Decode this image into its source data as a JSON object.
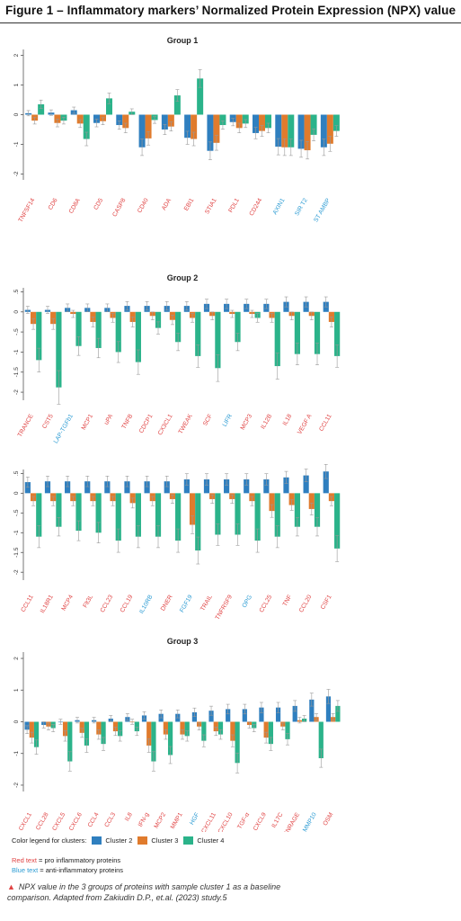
{
  "title": "Figure 1 – Inflammatory markers’ Normalized Protein Expression (NPX) value",
  "colors": {
    "c2": "#2f7fbf",
    "c3": "#e07b2d",
    "c4": "#2bb38a",
    "pro": "#e04343",
    "anti": "#2b9bd3"
  },
  "legend": {
    "heading": "Color legend for clusters:",
    "items": [
      "Cluster 2",
      "Cluster 3",
      "Cluster 4"
    ],
    "red_word": "Red text",
    "red_rest": "= pro inflammatory proteins",
    "blue_word": "Blue text",
    "blue_rest": "= anti-inflammatory proteins"
  },
  "caption": "NPX value in the 3 groups of proteins with sample cluster 1 as a baseline comparison. Adapted from Zakiudin D.P., et.al. (2023) study.5",
  "chart_data": [
    {
      "type": "bar",
      "title": "Group 1",
      "ylim": [
        -2.2,
        2.2
      ],
      "yticks": [
        -2,
        -1,
        0,
        1,
        2
      ],
      "ytick_labels": [
        "-2",
        "-1",
        "0",
        "1",
        "2"
      ],
      "categories": [
        "TNFSF14",
        "CD6",
        "CD8A",
        "CD5",
        "CASP8",
        "CD40",
        "ADA",
        "EBI1",
        "STIA1",
        "PDL1",
        "CD244",
        "AXIN1",
        "SIR T2",
        "ST AMBP"
      ],
      "category_colors": [
        "pro",
        "pro",
        "pro",
        "pro",
        "pro",
        "pro",
        "pro",
        "pro",
        "pro",
        "pro",
        "pro",
        "anti",
        "anti",
        "anti"
      ],
      "series": [
        {
          "name": "Cluster 2",
          "values": [
            0.05,
            0.07,
            0.15,
            -0.28,
            -0.35,
            -1.1,
            -0.5,
            -0.78,
            -1.22,
            -0.25,
            -0.62,
            -1.08,
            -1.15,
            -1.1
          ]
        },
        {
          "name": "Cluster 3",
          "values": [
            -0.2,
            -0.28,
            -0.3,
            -0.22,
            -0.45,
            -0.8,
            -0.4,
            -0.82,
            -0.95,
            -0.45,
            -0.55,
            -1.1,
            -1.2,
            -0.98
          ]
        },
        {
          "name": "Cluster 4",
          "values": [
            0.35,
            -0.2,
            -0.82,
            0.55,
            0.1,
            -0.18,
            0.65,
            1.22,
            -0.35,
            -0.3,
            -0.45,
            -1.1,
            -0.68,
            -0.55
          ]
        }
      ]
    },
    {
      "type": "bar",
      "title": "Group 2",
      "ylim": [
        -2.2,
        0.6
      ],
      "yticks": [
        0.5,
        0,
        -0.5,
        -1,
        -1.5,
        -2
      ],
      "ytick_labels": [
        ".5",
        "0",
        "-.5",
        "-1",
        "-1.5",
        "-2"
      ],
      "categories": [
        "TRANCE",
        "CST5",
        "LAP-TGFb1",
        "MCP1",
        "uPA",
        "TNFB",
        "CDCP1",
        "CX3CL1",
        "TWEAK",
        "SCF",
        "LIFR",
        "MCP3",
        "IL12B",
        "IL18",
        "VEGF A",
        "CCL11"
      ],
      "category_colors": [
        "pro",
        "pro",
        "anti",
        "pro",
        "pro",
        "pro",
        "pro",
        "pro",
        "pro",
        "pro",
        "anti",
        "pro",
        "pro",
        "pro",
        "pro",
        "pro"
      ],
      "series": [
        {
          "name": "Cluster 2",
          "values": [
            0.05,
            0.05,
            0.1,
            0.1,
            0.1,
            0.15,
            0.15,
            0.15,
            0.15,
            0.2,
            0.2,
            0.2,
            0.2,
            0.25,
            0.25,
            0.25
          ]
        },
        {
          "name": "Cluster 3",
          "values": [
            -0.3,
            -0.3,
            -0.05,
            -0.25,
            -0.15,
            -0.25,
            -0.1,
            -0.2,
            -0.15,
            -0.1,
            -0.05,
            -0.05,
            -0.15,
            -0.1,
            -0.1,
            -0.25
          ]
        },
        {
          "name": "Cluster 4",
          "values": [
            -1.2,
            -1.88,
            -0.85,
            -0.9,
            -1.0,
            -1.25,
            -0.4,
            -0.75,
            -1.1,
            -1.4,
            -0.75,
            -0.15,
            -1.35,
            -1.05,
            -1.05,
            -1.1
          ]
        }
      ]
    },
    {
      "type": "bar",
      "title": "",
      "ylim": [
        -2.2,
        0.6
      ],
      "yticks": [
        0.5,
        0,
        -0.5,
        -1,
        -1.5,
        -2
      ],
      "ytick_labels": [
        ".5",
        "0",
        "-.5",
        "-1",
        "-1.5",
        "-2"
      ],
      "categories": [
        "CCL11",
        "IL18R1",
        "MCP4",
        "Flt3L",
        "CCL23",
        "CCL19",
        "IL10RB",
        "DNER",
        "FGF19",
        "TRAIL",
        "TNFRSF9",
        "OPG",
        "CCL25",
        "TNF",
        "CCL20",
        "CSF1"
      ],
      "category_colors": [
        "pro",
        "pro",
        "pro",
        "pro",
        "pro",
        "pro",
        "anti",
        "pro",
        "anti",
        "pro",
        "pro",
        "anti",
        "pro",
        "pro",
        "pro",
        "pro"
      ],
      "series": [
        {
          "name": "Cluster 2",
          "values": [
            0.28,
            0.3,
            0.3,
            0.3,
            0.3,
            0.3,
            0.3,
            0.3,
            0.35,
            0.35,
            0.35,
            0.35,
            0.35,
            0.4,
            0.45,
            0.55
          ]
        },
        {
          "name": "Cluster 3",
          "values": [
            -0.2,
            -0.2,
            -0.2,
            -0.2,
            -0.2,
            -0.25,
            -0.2,
            -0.15,
            -0.8,
            -0.15,
            -0.15,
            -0.2,
            -0.45,
            -0.3,
            -0.4,
            -0.2
          ]
        },
        {
          "name": "Cluster 4",
          "values": [
            -1.1,
            -0.85,
            -0.95,
            -1.0,
            -1.2,
            -1.1,
            -1.1,
            -1.2,
            -1.45,
            -1.05,
            -1.05,
            -1.2,
            -1.1,
            -0.85,
            -0.85,
            -1.4
          ]
        }
      ]
    },
    {
      "type": "bar",
      "title": "Group 3",
      "ylim": [
        -2.2,
        2.2
      ],
      "yticks": [
        -2,
        -1,
        0,
        1,
        2
      ],
      "ytick_labels": [
        "-2",
        "-1",
        "0",
        "1",
        "2"
      ],
      "categories": [
        "CXCL1",
        "CCL28",
        "CXCL5",
        "CXCL6",
        "CCL4",
        "CCL3",
        "IL8",
        "IFN-g",
        "MCP2",
        "MMP1",
        "HGF",
        "CXCL11",
        "CXCL10",
        "TGF-α",
        "CXCL9",
        "IL17C",
        "ENRAGE",
        "MMP10",
        "OSM"
      ],
      "category_colors": [
        "pro",
        "pro",
        "pro",
        "pro",
        "pro",
        "pro",
        "pro",
        "pro",
        "pro",
        "pro",
        "anti",
        "pro",
        "pro",
        "pro",
        "pro",
        "pro",
        "pro",
        "anti",
        "pro"
      ],
      "series": [
        {
          "name": "Cluster 2",
          "values": [
            -0.25,
            -0.1,
            0.0,
            0.05,
            0.05,
            0.1,
            0.15,
            0.2,
            0.25,
            0.25,
            0.3,
            0.35,
            0.4,
            0.4,
            0.45,
            0.45,
            0.5,
            0.7,
            0.8
          ]
        },
        {
          "name": "Cluster 3",
          "values": [
            -0.5,
            -0.15,
            -0.45,
            -0.35,
            -0.4,
            -0.3,
            0.0,
            -0.75,
            -0.4,
            -0.4,
            -0.15,
            -0.3,
            -0.6,
            -0.1,
            -0.5,
            -0.15,
            0.05,
            0.15,
            0.15
          ]
        },
        {
          "name": "Cluster 4",
          "values": [
            -0.8,
            -0.2,
            -1.25,
            -0.75,
            -0.7,
            -0.45,
            -0.3,
            -1.25,
            -1.05,
            -0.45,
            -0.6,
            -0.4,
            -1.3,
            -0.2,
            -0.7,
            -0.55,
            0.1,
            -1.15,
            0.5
          ]
        }
      ]
    }
  ]
}
